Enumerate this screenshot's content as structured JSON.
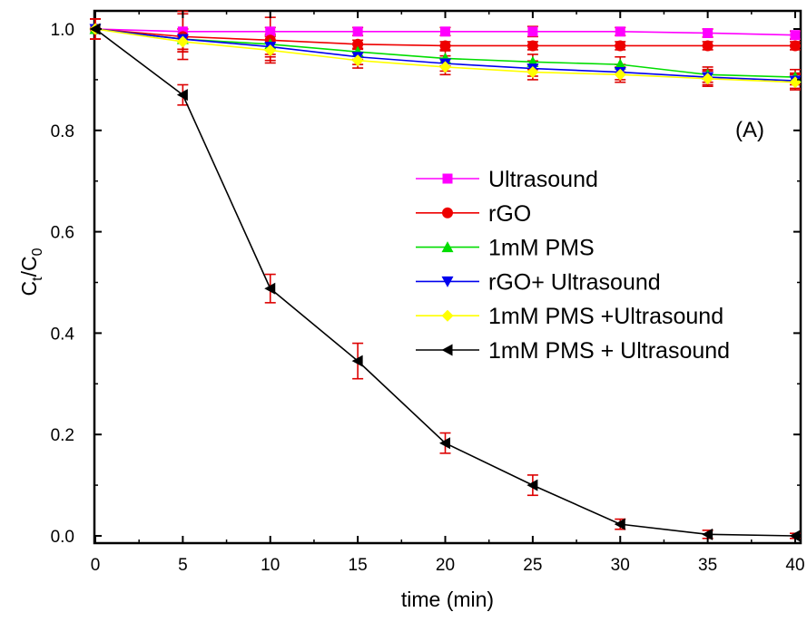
{
  "chart_data": {
    "type": "line",
    "xlabel": "time (min)",
    "ylabel_main": "C",
    "ylabel_sub1": "t",
    "ylabel_mid": "/C",
    "ylabel_sub2": "0",
    "panel_label": "(A)",
    "x": [
      0,
      5,
      10,
      15,
      20,
      25,
      30,
      35,
      40
    ],
    "xlim": [
      0,
      40
    ],
    "ylim": [
      0,
      1.0
    ],
    "xticks": [
      "0",
      "5",
      "10",
      "15",
      "20",
      "25",
      "30",
      "35",
      "40"
    ],
    "yticks": [
      "0.0",
      "0.2",
      "0.4",
      "0.6",
      "0.8",
      "1.0"
    ],
    "legend_position": "center-right",
    "grid": false,
    "error_bar_color": "#dd0000",
    "series": [
      {
        "name": "Ultrasound",
        "color": "#ff00ff",
        "marker": "square",
        "values": [
          1.0,
          0.995,
          0.995,
          0.995,
          0.995,
          0.995,
          0.995,
          0.992,
          0.988
        ],
        "errors": [
          0.02,
          0.04,
          0.008,
          0.008,
          0.008,
          0.01,
          0.008,
          0.008,
          0.008
        ]
      },
      {
        "name": "rGO",
        "color": "#ee0000",
        "marker": "circle",
        "values": [
          1.0,
          0.985,
          0.978,
          0.97,
          0.967,
          0.967,
          0.967,
          0.967,
          0.967
        ],
        "errors": [
          0.02,
          0.045,
          0.045,
          0.008,
          0.008,
          0.008,
          0.008,
          0.008,
          0.008
        ]
      },
      {
        "name": "1mM PMS",
        "color": "#00dd00",
        "marker": "triangle-up",
        "values": [
          1.0,
          0.98,
          0.97,
          0.955,
          0.942,
          0.935,
          0.93,
          0.91,
          0.905
        ],
        "errors": [
          0.02,
          0.02,
          0.02,
          0.015,
          0.015,
          0.015,
          0.015,
          0.015,
          0.015
        ]
      },
      {
        "name": "rGO+ Ultrasound",
        "color": "#0000ee",
        "marker": "triangle-down",
        "values": [
          1.0,
          0.98,
          0.965,
          0.945,
          0.932,
          0.922,
          0.915,
          0.905,
          0.898
        ],
        "errors": [
          0.02,
          0.02,
          0.02,
          0.015,
          0.015,
          0.015,
          0.015,
          0.015,
          0.015
        ]
      },
      {
        "name": "1mM PMS +Ultrasound",
        "color": "#ffff00",
        "marker": "diamond",
        "values": [
          1.0,
          0.975,
          0.958,
          0.938,
          0.925,
          0.915,
          0.91,
          0.902,
          0.895
        ],
        "errors": [
          0.02,
          0.02,
          0.02,
          0.015,
          0.015,
          0.015,
          0.015,
          0.015,
          0.015
        ]
      },
      {
        "name": "1mM PMS + Ultrasound",
        "color": "#000000",
        "marker": "triangle-left",
        "values": [
          1.0,
          0.87,
          0.488,
          0.345,
          0.183,
          0.1,
          0.023,
          0.003,
          0.0
        ],
        "errors": [
          0.02,
          0.02,
          0.028,
          0.035,
          0.02,
          0.02,
          0.01,
          0.008,
          0.005
        ]
      }
    ]
  }
}
